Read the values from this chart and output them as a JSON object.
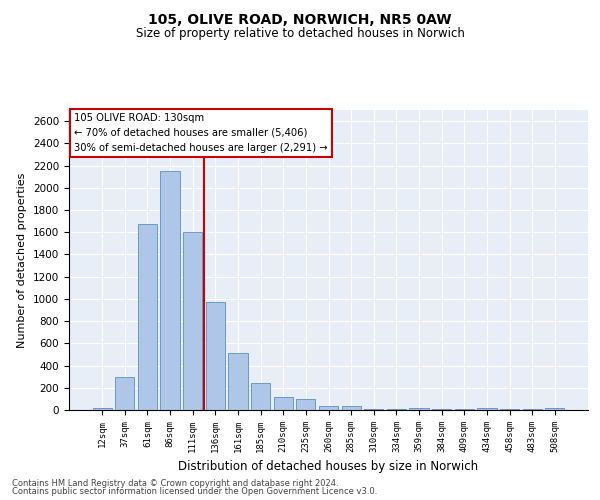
{
  "title1": "105, OLIVE ROAD, NORWICH, NR5 0AW",
  "title2": "Size of property relative to detached houses in Norwich",
  "xlabel": "Distribution of detached houses by size in Norwich",
  "ylabel": "Number of detached properties",
  "bar_color": "#aec6e8",
  "bar_edge_color": "#5a8fc0",
  "categories": [
    "12sqm",
    "37sqm",
    "61sqm",
    "86sqm",
    "111sqm",
    "136sqm",
    "161sqm",
    "185sqm",
    "210sqm",
    "235sqm",
    "260sqm",
    "285sqm",
    "310sqm",
    "334sqm",
    "359sqm",
    "384sqm",
    "409sqm",
    "434sqm",
    "458sqm",
    "483sqm",
    "508sqm"
  ],
  "values": [
    20,
    300,
    1670,
    2150,
    1600,
    970,
    510,
    245,
    120,
    95,
    40,
    35,
    10,
    5,
    20,
    5,
    5,
    20,
    5,
    5,
    20
  ],
  "vline_color": "#cc0000",
  "annotation_text": "105 OLIVE ROAD: 130sqm\n← 70% of detached houses are smaller (5,406)\n30% of semi-detached houses are larger (2,291) →",
  "ylim": [
    0,
    2700
  ],
  "yticks": [
    0,
    200,
    400,
    600,
    800,
    1000,
    1200,
    1400,
    1600,
    1800,
    2000,
    2200,
    2400,
    2600
  ],
  "footnote1": "Contains HM Land Registry data © Crown copyright and database right 2024.",
  "footnote2": "Contains public sector information licensed under the Open Government Licence v3.0.",
  "background_color": "#e8eef8",
  "fig_background": "#ffffff"
}
